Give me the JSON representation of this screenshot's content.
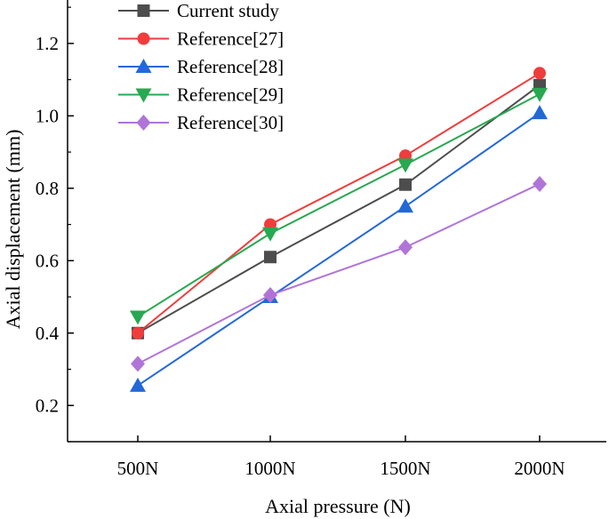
{
  "chart_data": {
    "type": "line",
    "title": "",
    "xlabel": "Axial pressure (N)",
    "ylabel": "Axial displacement (mm)",
    "categories": [
      "500N",
      "1000N",
      "1500N",
      "2000N"
    ],
    "ylim": [
      0.1,
      1.32
    ],
    "yticks": [
      0.2,
      0.4,
      0.6,
      0.8,
      1.0,
      1.2
    ],
    "ytick_labels": [
      "0.2",
      "0.4",
      "0.6",
      "0.8",
      "1.0",
      "1.2"
    ],
    "legend_position": "top-left",
    "series": [
      {
        "name": "Current study",
        "color": "#4d4d4d",
        "marker": "square",
        "values": [
          0.4,
          0.61,
          0.81,
          1.085
        ]
      },
      {
        "name": "Reference[27]",
        "color": "#f03c3c",
        "marker": "circle",
        "values": [
          0.4,
          0.7,
          0.89,
          1.118
        ]
      },
      {
        "name": "Reference[28]",
        "color": "#2268d8",
        "marker": "triangle-up",
        "values": [
          0.255,
          0.5,
          0.75,
          1.008
        ]
      },
      {
        "name": "Reference[29]",
        "color": "#28a850",
        "marker": "triangle-down",
        "values": [
          0.445,
          0.675,
          0.865,
          1.06
        ]
      },
      {
        "name": "Reference[30]",
        "color": "#b074d8",
        "marker": "diamond",
        "values": [
          0.315,
          0.505,
          0.637,
          0.812
        ]
      }
    ]
  }
}
